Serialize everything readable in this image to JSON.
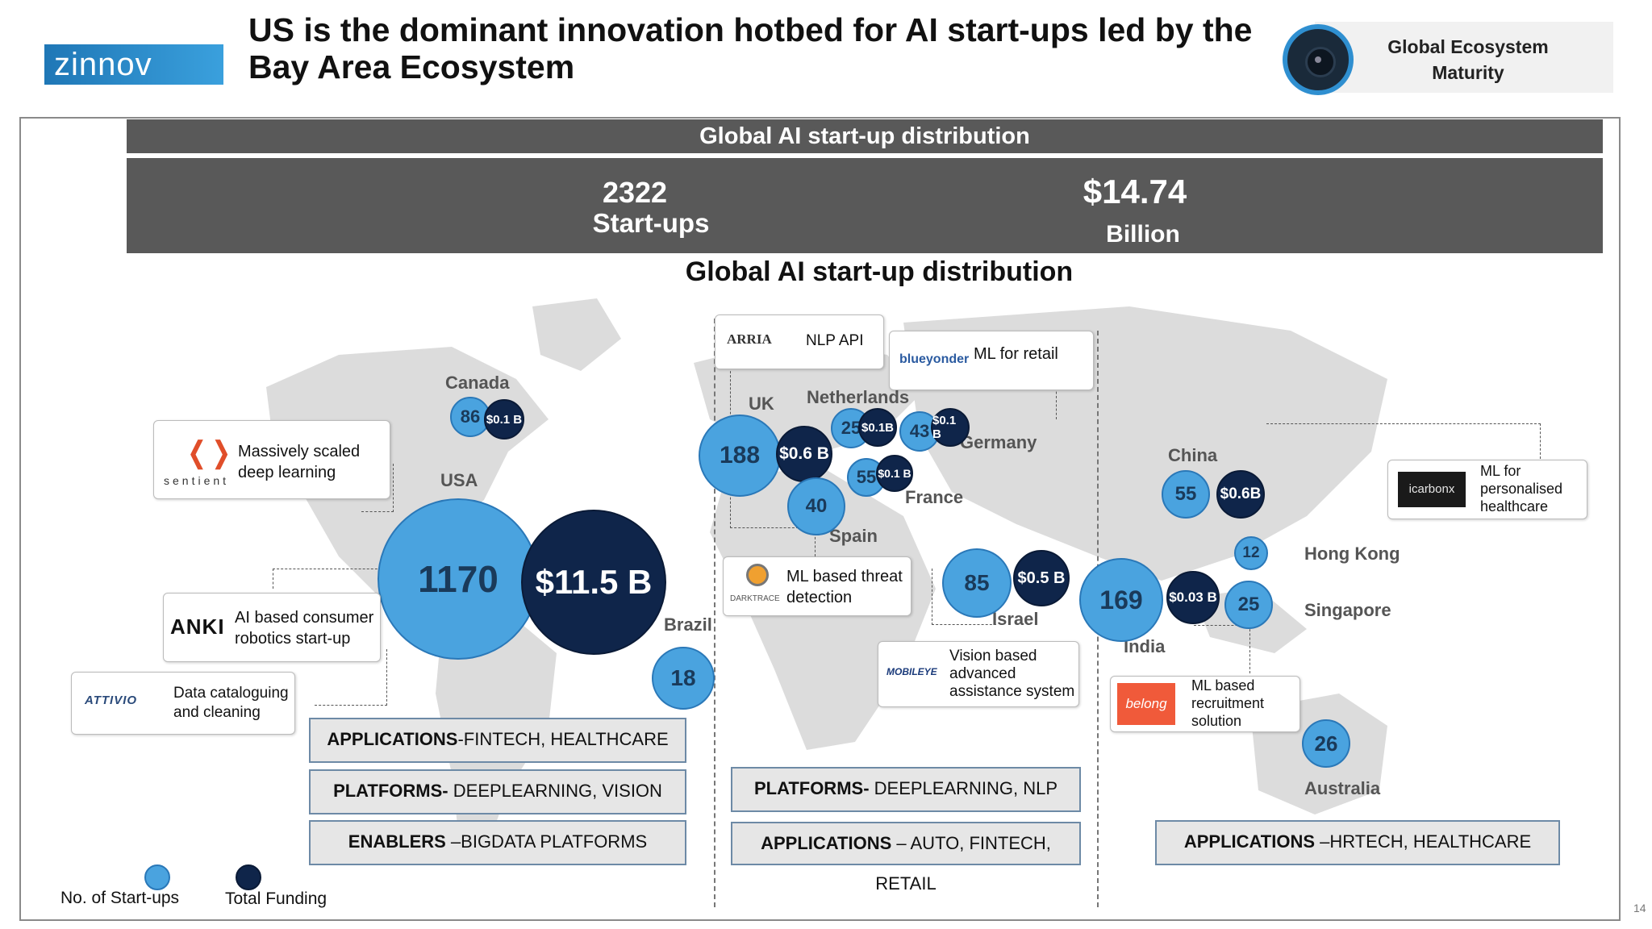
{
  "header": {
    "logo_text": "zinnov",
    "title": "US is the dominant innovation hotbed for AI start-ups led by the Bay Area Ecosystem",
    "badge_label": "Global Ecosystem Maturity"
  },
  "summary": {
    "band_title": "Global AI start-up distribution",
    "startups_value": "2322",
    "startups_label": "Start-ups",
    "funding_value": "$14.74",
    "funding_label": "Billion"
  },
  "map_title": "Global AI start-up distribution",
  "countries": {
    "canada": "Canada",
    "usa": "USA",
    "brazil": "Brazil",
    "uk": "UK",
    "netherlands": "Netherlands",
    "germany": "Germany",
    "france": "France",
    "spain": "Spain",
    "israel": "Israel",
    "china": "China",
    "hong_kong": "Hong Kong",
    "singapore": "Singapore",
    "india": "India",
    "australia": "Australia"
  },
  "bubbles": {
    "canada_count": "86",
    "canada_funding": "$0.1 B",
    "usa_count": "1170",
    "usa_funding": "$11.5 B",
    "brazil_count": "18",
    "uk_count": "188",
    "uk_funding": "$0.6 B",
    "netherlands_count": "25",
    "netherlands_funding": "$0.1B",
    "germany_count": "43",
    "germany_funding": "$0.1 B",
    "france_count": "55",
    "france_funding": "$0.1 B",
    "spain_count": "40",
    "israel_count": "85",
    "israel_funding": "$0.5 B",
    "china_count": "55",
    "china_funding": "$0.6B",
    "hong_kong_count": "12",
    "india_count": "169",
    "india_funding": "$0.03 B",
    "singapore_count": "25",
    "australia_count": "26"
  },
  "callouts": {
    "sentient": {
      "logo": "sentient",
      "text_1": "Massively scaled",
      "text_2": "deep learning"
    },
    "anki": {
      "logo": "ANKI",
      "text_1": "AI based consumer",
      "text_2": "robotics start-up"
    },
    "attivio": {
      "logo": "ATTIVIO",
      "text_1": "Data cataloguing",
      "text_2": "and cleaning"
    },
    "arria": {
      "logo": "ARRIA",
      "text_1": "NLP API"
    },
    "blueyonder": {
      "logo": "blueyonder",
      "text_1": "ML for retail"
    },
    "darktrace": {
      "logo": "DARKTRACE",
      "text_1": "ML based threat",
      "text_2": "detection"
    },
    "mobileye": {
      "logo": "MOBILEYE",
      "text_1": "Vision based",
      "text_2": "advanced",
      "text_3": "assistance system"
    },
    "icarbonx": {
      "logo": "icarbonx",
      "text_1": "ML for",
      "text_2": "personalised",
      "text_3": "healthcare"
    },
    "belong": {
      "logo": "belong",
      "text_1": "ML based",
      "text_2": "recruitment",
      "text_3": "solution"
    }
  },
  "categories": {
    "americas_1": {
      "bold": "APPLICATIONS",
      "rest": "-FINTECH, HEALTHCARE"
    },
    "americas_2": {
      "bold": "PLATFORMS-",
      "rest": " DEEPLEARNING, VISION"
    },
    "americas_3": {
      "bold": "ENABLERS",
      "rest": " –BIGDATA PLATFORMS"
    },
    "europe_1": {
      "bold": "PLATFORMS-",
      "rest": " DEEPLEARNING, NLP"
    },
    "europe_2": {
      "bold": "APPLICATIONS",
      "rest": " – AUTO, FINTECH, RETAIL"
    },
    "asia_1": {
      "bold": "APPLICATIONS",
      "rest": " –HRTECH, HEALTHCARE"
    }
  },
  "legend": {
    "startups": "No. of Start-ups",
    "funding": "Total Funding"
  },
  "page_number": "14",
  "colors": {
    "startups_bubble": "#4aa3df",
    "funding_bubble": "#0f254a",
    "band": "#595959"
  }
}
